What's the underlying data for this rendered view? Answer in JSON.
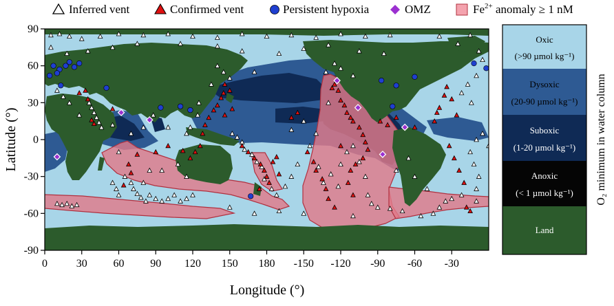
{
  "legend": {
    "items": [
      {
        "label": "Inferred vent",
        "marker": "triangle-open"
      },
      {
        "label": "Confirmed vent",
        "marker": "triangle-red"
      },
      {
        "label": "Persistent hypoxia",
        "marker": "circle-blue"
      },
      {
        "label": "OMZ",
        "marker": "diamond-purple"
      },
      {
        "label_prefix": "Fe",
        "label_sup": "2+",
        "label_suffix": " anomaly ≥ 1 nM",
        "marker": "square-pink"
      }
    ]
  },
  "map": {
    "xlabel": "Longitude (°)",
    "ylabel": "Latitude (°)",
    "x_ticks": [
      "0",
      "30",
      "60",
      "90",
      "120",
      "150",
      "180",
      "-150",
      "-120",
      "-90",
      "-60",
      "-30"
    ],
    "x_tick_lon": [
      0,
      30,
      60,
      90,
      120,
      150,
      180,
      210,
      240,
      270,
      300,
      330
    ],
    "y_ticks": [
      "90",
      "60",
      "30",
      "0",
      "-30",
      "-60",
      "-90"
    ],
    "y_tick_lat": [
      90,
      60,
      30,
      0,
      -30,
      -60,
      -90
    ],
    "lon_range": [
      0,
      360
    ],
    "lat_range": [
      -90,
      90
    ]
  },
  "colorbar": {
    "title": "O₂ minimum in water column",
    "classes": [
      {
        "name": "Oxic",
        "range": "(>90 µmol kg⁻¹)",
        "color": "#a8d5e8"
      },
      {
        "name": "Dysoxic",
        "range": "(20-90 µmol kg⁻¹)",
        "color": "#2e5a93"
      },
      {
        "name": "Suboxic",
        "range": "(1-20 µmol kg⁻¹)",
        "color": "#0f2a55"
      },
      {
        "name": "Anoxic",
        "range": "(< 1 µmol kg⁻¹)",
        "color": "#050505"
      },
      {
        "name": "Land",
        "range": "",
        "color": "#2c5b2c"
      }
    ]
  },
  "colors": {
    "ocean": "#a8d5e8",
    "land": "#2c5b2c",
    "dysoxic": "#2e5a93",
    "suboxic": "#0f2a55",
    "fe_fill": "#e07a8a",
    "fe_edge": "#b0303f",
    "hypoxia": "#1f3fd0",
    "omz": "#9b30d0",
    "vent_red": "#e01010"
  },
  "markers": {
    "hypoxia": [
      [
        7,
        60
      ],
      [
        12,
        57
      ],
      [
        17,
        60
      ],
      [
        20,
        63
      ],
      [
        24,
        59
      ],
      [
        28,
        62
      ],
      [
        10,
        54
      ],
      [
        4,
        52
      ],
      [
        50,
        42
      ],
      [
        13,
        44
      ],
      [
        94,
        26
      ],
      [
        110,
        27
      ],
      [
        118,
        24
      ],
      [
        300,
        51
      ],
      [
        273,
        48
      ],
      [
        282,
        27
      ],
      [
        285,
        44
      ],
      [
        167,
        -46
      ],
      [
        348,
        62
      ],
      [
        358,
        58
      ]
    ],
    "omz": [
      [
        10,
        -14
      ],
      [
        62,
        22
      ],
      [
        85,
        16
      ],
      [
        237,
        48
      ],
      [
        254,
        26
      ],
      [
        292,
        10
      ],
      [
        274,
        -12
      ]
    ],
    "confirmed": [
      [
        28,
        38
      ],
      [
        33,
        40
      ],
      [
        35,
        33
      ],
      [
        38,
        16
      ],
      [
        40,
        13
      ],
      [
        55,
        25
      ],
      [
        64,
        -37
      ],
      [
        70,
        -27
      ],
      [
        68,
        -20
      ],
      [
        75,
        -12
      ],
      [
        90,
        -10
      ],
      [
        100,
        -5
      ],
      [
        112,
        -9
      ],
      [
        118,
        -15
      ],
      [
        122,
        -10
      ],
      [
        126,
        -5
      ],
      [
        128,
        5
      ],
      [
        130,
        12
      ],
      [
        133,
        18
      ],
      [
        137,
        24
      ],
      [
        140,
        28
      ],
      [
        143,
        34
      ],
      [
        145,
        38
      ],
      [
        146,
        45
      ],
      [
        150,
        40
      ],
      [
        146,
        20
      ],
      [
        152,
        25
      ],
      [
        160,
        -5
      ],
      [
        165,
        -10
      ],
      [
        170,
        -15
      ],
      [
        175,
        -20
      ],
      [
        178,
        -25
      ],
      [
        180,
        -30
      ],
      [
        182,
        -35
      ],
      [
        174,
        -40
      ],
      [
        185,
        -18
      ],
      [
        188,
        -14
      ],
      [
        190,
        -28
      ],
      [
        233,
        42
      ],
      [
        235,
        45
      ],
      [
        238,
        40
      ],
      [
        240,
        32
      ],
      [
        243,
        28
      ],
      [
        245,
        22
      ],
      [
        248,
        18
      ],
      [
        250,
        15
      ],
      [
        255,
        10
      ],
      [
        258,
        4
      ],
      [
        260,
        -2
      ],
      [
        262,
        -8
      ],
      [
        258,
        -15
      ],
      [
        252,
        -20
      ],
      [
        248,
        -25
      ],
      [
        246,
        -35
      ],
      [
        250,
        -45
      ],
      [
        272,
        15
      ],
      [
        278,
        12
      ],
      [
        285,
        18
      ],
      [
        300,
        10
      ],
      [
        316,
        15
      ],
      [
        318,
        22
      ],
      [
        320,
        26
      ],
      [
        324,
        36
      ],
      [
        326,
        43
      ],
      [
        330,
        33
      ],
      [
        334,
        20
      ],
      [
        328,
        -5
      ],
      [
        332,
        -15
      ],
      [
        336,
        -25
      ],
      [
        340,
        -35
      ],
      [
        342,
        -55
      ],
      [
        345,
        -58
      ],
      [
        200,
        18
      ],
      [
        205,
        22
      ],
      [
        213,
        -10
      ],
      [
        218,
        -18
      ],
      [
        220,
        -25
      ],
      [
        225,
        -32
      ],
      [
        240,
        -5
      ],
      [
        228,
        -40
      ],
      [
        230,
        -48
      ],
      [
        235,
        -55
      ]
    ],
    "inferred": [
      [
        5,
        85
      ],
      [
        12,
        86
      ],
      [
        20,
        84
      ],
      [
        30,
        82
      ],
      [
        45,
        84
      ],
      [
        60,
        86
      ],
      [
        80,
        85
      ],
      [
        100,
        86
      ],
      [
        120,
        84
      ],
      [
        140,
        83
      ],
      [
        160,
        86
      ],
      [
        180,
        84
      ],
      [
        200,
        85
      ],
      [
        220,
        83
      ],
      [
        240,
        86
      ],
      [
        260,
        84
      ],
      [
        280,
        85
      ],
      [
        320,
        84
      ],
      [
        345,
        85
      ],
      [
        5,
        75
      ],
      [
        18,
        70
      ],
      [
        35,
        72
      ],
      [
        55,
        75
      ],
      [
        75,
        78
      ],
      [
        110,
        78
      ],
      [
        140,
        76
      ],
      [
        160,
        72
      ],
      [
        190,
        70
      ],
      [
        210,
        74
      ],
      [
        230,
        77
      ],
      [
        255,
        72
      ],
      [
        275,
        70
      ],
      [
        335,
        78
      ],
      [
        352,
        72
      ],
      [
        355,
        65
      ],
      [
        36,
        30
      ],
      [
        38,
        26
      ],
      [
        40,
        22
      ],
      [
        42,
        18
      ],
      [
        44,
        14
      ],
      [
        46,
        10
      ],
      [
        60,
        -10
      ],
      [
        65,
        -30
      ],
      [
        70,
        -35
      ],
      [
        72,
        -40
      ],
      [
        75,
        -44
      ],
      [
        78,
        -47
      ],
      [
        82,
        -50
      ],
      [
        55,
        -35
      ],
      [
        58,
        -40
      ],
      [
        60,
        -45
      ],
      [
        85,
        -45
      ],
      [
        90,
        -48
      ],
      [
        95,
        -50
      ],
      [
        100,
        -48
      ],
      [
        105,
        -45
      ],
      [
        110,
        -50
      ],
      [
        115,
        -48
      ],
      [
        120,
        -45
      ],
      [
        10,
        -52
      ],
      [
        14,
        -53
      ],
      [
        18,
        -52
      ],
      [
        22,
        -54
      ],
      [
        26,
        -53
      ],
      [
        152,
        5
      ],
      [
        156,
        2
      ],
      [
        160,
        -2
      ],
      [
        162,
        -8
      ],
      [
        168,
        -12
      ],
      [
        172,
        -18
      ],
      [
        176,
        -22
      ],
      [
        178,
        -32
      ],
      [
        184,
        -40
      ],
      [
        188,
        -45
      ],
      [
        195,
        -38
      ],
      [
        200,
        -30
      ],
      [
        205,
        -20
      ],
      [
        215,
        -5
      ],
      [
        222,
        -22
      ],
      [
        226,
        -35
      ],
      [
        232,
        -28
      ],
      [
        238,
        -38
      ],
      [
        240,
        -20
      ],
      [
        245,
        -10
      ],
      [
        250,
        -5
      ],
      [
        255,
        -18
      ],
      [
        260,
        -30
      ],
      [
        262,
        -45
      ],
      [
        265,
        -52
      ],
      [
        270,
        -55
      ],
      [
        280,
        -56
      ],
      [
        290,
        -58
      ],
      [
        305,
        -62
      ],
      [
        315,
        -60
      ],
      [
        320,
        -55
      ],
      [
        325,
        -50
      ],
      [
        330,
        -48
      ],
      [
        338,
        -45
      ],
      [
        350,
        -40
      ],
      [
        352,
        -30
      ],
      [
        348,
        -20
      ],
      [
        345,
        -10
      ],
      [
        350,
        0
      ],
      [
        355,
        5
      ],
      [
        350,
        -50
      ],
      [
        300,
        -30
      ],
      [
        310,
        -40
      ],
      [
        285,
        -25
      ],
      [
        295,
        -15
      ],
      [
        115,
        -30
      ],
      [
        108,
        -20
      ],
      [
        95,
        -25
      ],
      [
        85,
        -25
      ],
      [
        80,
        -35
      ],
      [
        150,
        -55
      ],
      [
        170,
        -60
      ],
      [
        190,
        -58
      ],
      [
        210,
        -60
      ],
      [
        250,
        -62
      ],
      [
        200,
        8
      ],
      [
        210,
        15
      ],
      [
        220,
        5
      ],
      [
        230,
        30
      ],
      [
        240,
        58
      ],
      [
        250,
        52
      ],
      [
        228,
        55
      ],
      [
        235,
        62
      ],
      [
        145,
        55
      ],
      [
        140,
        60
      ],
      [
        170,
        55
      ],
      [
        150,
        50
      ],
      [
        135,
        45
      ],
      [
        125,
        30
      ],
      [
        124,
        20
      ],
      [
        118,
        10
      ],
      [
        115,
        5
      ],
      [
        100,
        10
      ],
      [
        88,
        20
      ],
      [
        80,
        10
      ],
      [
        70,
        5
      ],
      [
        55,
        12
      ],
      [
        28,
        20
      ],
      [
        20,
        30
      ],
      [
        15,
        35
      ],
      [
        10,
        40
      ],
      [
        350,
        52
      ],
      [
        343,
        45
      ],
      [
        338,
        38
      ],
      [
        346,
        30
      ],
      [
        360,
        -5
      ]
    ]
  }
}
